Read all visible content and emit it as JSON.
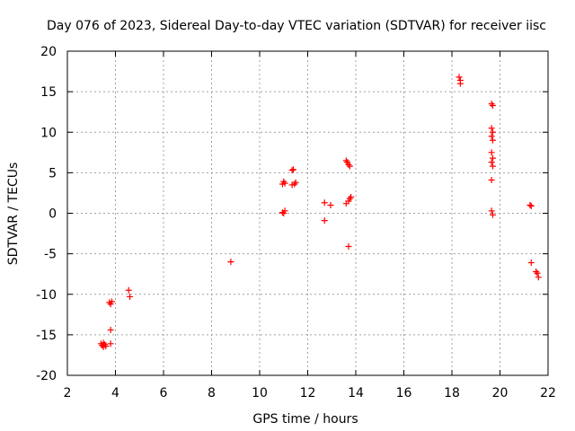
{
  "chart_data": {
    "type": "scatter",
    "title": "Day 076 of 2023, Sidereal Day-to-day VTEC variation (SDTVAR) for receiver iisc",
    "xlabel": "GPS time / hours",
    "ylabel": "SDTVAR / TECUs",
    "xlim": [
      2,
      22
    ],
    "ylim": [
      -20,
      20
    ],
    "x_ticks": [
      2,
      4,
      6,
      8,
      10,
      12,
      14,
      16,
      18,
      20,
      22
    ],
    "y_ticks": [
      -20,
      -15,
      -10,
      -5,
      0,
      5,
      10,
      15,
      20
    ],
    "x_tick_labels": [
      "2",
      "4",
      "6",
      "8",
      "10",
      "12",
      "14",
      "16",
      "18",
      "20",
      "22"
    ],
    "y_tick_labels": [
      "-20",
      "-15",
      "-10",
      "-5",
      "0",
      "5",
      "10",
      "15",
      "20"
    ],
    "grid": true,
    "marker": "+",
    "color": "#ff0000",
    "series": [
      {
        "name": "SDTVAR",
        "points": [
          [
            3.4,
            -16.1
          ],
          [
            3.45,
            -16.3
          ],
          [
            3.5,
            -16.5
          ],
          [
            3.55,
            -16.2
          ],
          [
            3.6,
            -16.4
          ],
          [
            3.5,
            -16.0
          ],
          [
            3.8,
            -16.1
          ],
          [
            3.8,
            -14.4
          ],
          [
            3.75,
            -11.0
          ],
          [
            3.8,
            -11.2
          ],
          [
            3.85,
            -10.9
          ],
          [
            4.55,
            -9.5
          ],
          [
            4.6,
            -10.3
          ],
          [
            8.8,
            -6.0
          ],
          [
            10.95,
            3.6
          ],
          [
            11.0,
            3.9
          ],
          [
            11.05,
            3.7
          ],
          [
            10.95,
            0.1
          ],
          [
            11.0,
            0.0
          ],
          [
            11.05,
            0.3
          ],
          [
            11.35,
            5.3
          ],
          [
            11.4,
            5.4
          ],
          [
            11.35,
            3.5
          ],
          [
            11.45,
            3.6
          ],
          [
            11.5,
            3.8
          ],
          [
            12.7,
            1.3
          ],
          [
            12.7,
            -0.9
          ],
          [
            12.95,
            1.0
          ],
          [
            13.6,
            6.5
          ],
          [
            13.65,
            6.3
          ],
          [
            13.7,
            6.0
          ],
          [
            13.75,
            5.8
          ],
          [
            13.6,
            1.2
          ],
          [
            13.7,
            1.5
          ],
          [
            13.75,
            1.8
          ],
          [
            13.8,
            2.0
          ],
          [
            13.7,
            -4.1
          ],
          [
            18.3,
            16.8
          ],
          [
            18.35,
            16.4
          ],
          [
            18.35,
            16.0
          ],
          [
            19.65,
            13.5
          ],
          [
            19.7,
            13.3
          ],
          [
            19.65,
            10.5
          ],
          [
            19.7,
            10.0
          ],
          [
            19.65,
            9.5
          ],
          [
            19.7,
            9.0
          ],
          [
            19.65,
            7.5
          ],
          [
            19.7,
            6.8
          ],
          [
            19.65,
            6.3
          ],
          [
            19.7,
            5.8
          ],
          [
            19.65,
            4.1
          ],
          [
            19.65,
            0.3
          ],
          [
            19.7,
            -0.2
          ],
          [
            21.25,
            1.0
          ],
          [
            21.3,
            0.9
          ],
          [
            21.3,
            -6.1
          ],
          [
            21.5,
            -7.2
          ],
          [
            21.55,
            -7.4
          ],
          [
            21.6,
            -7.9
          ]
        ]
      }
    ]
  }
}
